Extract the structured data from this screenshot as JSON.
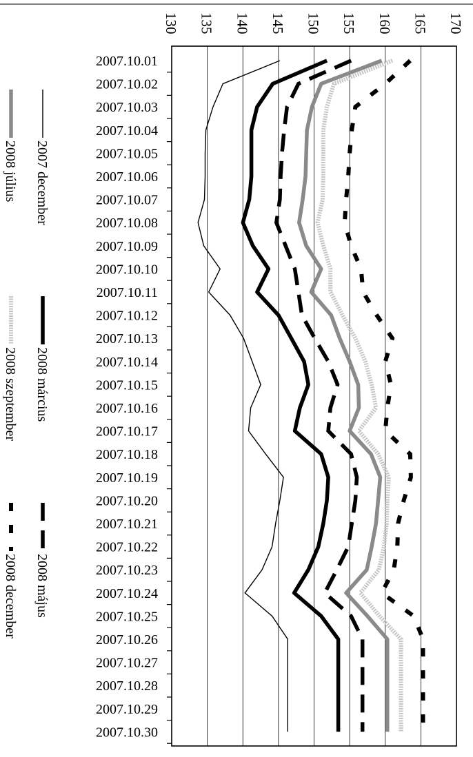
{
  "chart_data": {
    "type": "line",
    "orientation": "rotated-90",
    "categories": [
      "2007.10.01",
      "2007.10.02",
      "2007.10.03",
      "2007.10.04",
      "2007.10.05",
      "2007.10.06",
      "2007.10.07",
      "2007.10.08",
      "2007.10.09",
      "2007.10.10",
      "2007.10.11",
      "2007.10.12",
      "2007.10.13",
      "2007.10.14",
      "2007.10.15",
      "2007.10.16",
      "2007.10.17",
      "2007.10.18",
      "2007.10.19",
      "2007.10.20",
      "2007.10.21",
      "2007.10.22",
      "2007.10.23",
      "2007.10.24",
      "2007.10.25",
      "2007.10.26",
      "2007.10.27",
      "2007.10.28",
      "2007.10.29",
      "2007.10.30"
    ],
    "ylim": [
      130,
      170
    ],
    "yticks": [
      "130",
      "135",
      "140",
      "145",
      "150",
      "155",
      "160",
      "165",
      "170"
    ],
    "grid": true,
    "legend_position": "left",
    "series": [
      {
        "name": "2007 december",
        "style": "thin-solid",
        "color": "#000000",
        "values": [
          145.2,
          137.2,
          135.8,
          134.8,
          134.7,
          134.7,
          134.6,
          133.7,
          134.5,
          136.8,
          135.2,
          138.2,
          140.1,
          141.3,
          142.5,
          141.1,
          140.8,
          143.2,
          145.7,
          145.2,
          144.6,
          144.1,
          142.7,
          140.3,
          144.1,
          146.3,
          146.3,
          146.3,
          146.3,
          146.3
        ]
      },
      {
        "name": "2008 március",
        "style": "thick-solid",
        "color": "#000000",
        "values": [
          151.8,
          144.2,
          142.0,
          141.2,
          141.2,
          141.2,
          140.9,
          140.0,
          141.4,
          143.6,
          142.0,
          145.0,
          146.8,
          148.6,
          149.2,
          148.0,
          147.3,
          151.0,
          152.0,
          151.8,
          151.3,
          150.6,
          149.2,
          147.2,
          151.0,
          153.4,
          153.4,
          153.4,
          153.4,
          153.4
        ]
      },
      {
        "name": "2008 május",
        "style": "long-dash",
        "color": "#000000",
        "values": [
          155.2,
          147.8,
          146.2,
          145.8,
          145.5,
          145.3,
          145.2,
          144.7,
          146.0,
          147.3,
          147.8,
          148.3,
          150.1,
          152.0,
          153.3,
          152.3,
          152.0,
          155.2,
          156.0,
          155.8,
          155.3,
          154.8,
          153.2,
          151.5,
          155.2,
          156.8,
          156.8,
          156.8,
          156.8,
          156.8
        ]
      },
      {
        "name": "2008 július",
        "style": "thick-gray",
        "color": "#808080",
        "values": [
          159.5,
          151.0,
          149.7,
          149.0,
          148.9,
          148.8,
          148.4,
          147.9,
          148.9,
          151.0,
          149.6,
          152.4,
          153.6,
          155.0,
          156.2,
          156.3,
          155.0,
          158.0,
          159.3,
          159.0,
          158.7,
          158.1,
          157.4,
          154.5,
          157.5,
          160.3,
          160.3,
          160.3,
          160.3,
          160.3
        ]
      },
      {
        "name": "2008 szeptember",
        "style": "dotted-lightgray",
        "color": "#c0c0c0",
        "values": [
          161.0,
          152.8,
          151.8,
          151.3,
          151.3,
          151.3,
          151.2,
          150.5,
          151.3,
          152.3,
          152.3,
          154.0,
          155.8,
          157.2,
          158.1,
          158.7,
          156.3,
          159.0,
          160.5,
          160.3,
          160.2,
          159.8,
          159.1,
          156.5,
          159.2,
          162.2,
          162.2,
          162.2,
          162.2,
          162.2
        ]
      },
      {
        "name": "2008 december",
        "style": "short-dash",
        "color": "#000000",
        "values": [
          163.5,
          160.0,
          155.8,
          155.3,
          155.0,
          154.8,
          154.5,
          154.3,
          155.2,
          156.6,
          156.9,
          158.8,
          161.0,
          160.0,
          160.8,
          160.3,
          160.0,
          163.5,
          163.6,
          162.6,
          161.8,
          161.7,
          161.2,
          159.5,
          164.0,
          165.3,
          165.3,
          165.3,
          165.3,
          165.3
        ]
      }
    ]
  }
}
